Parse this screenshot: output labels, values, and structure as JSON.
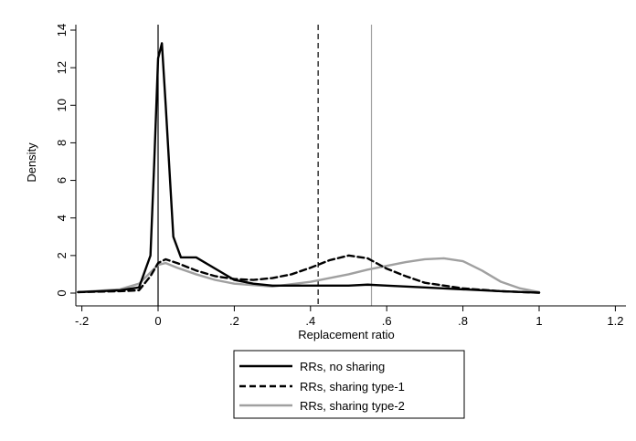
{
  "chart_data": {
    "type": "line",
    "xlabel": "Replacement ratio",
    "ylabel": "Density",
    "xlim": [
      -0.2,
      1.2
    ],
    "ylim": [
      0,
      14
    ],
    "xticks": [
      -0.2,
      0,
      0.2,
      0.4,
      0.6,
      0.8,
      1,
      1.2
    ],
    "xtick_labels": [
      "-.2",
      "0",
      ".2",
      ".4",
      ".6",
      ".8",
      "1",
      "1.2"
    ],
    "yticks": [
      0,
      2,
      4,
      6,
      8,
      10,
      12,
      14
    ],
    "ytick_labels": [
      "0",
      "2",
      "4",
      "6",
      "8",
      "10",
      "12",
      "14"
    ],
    "grid": false,
    "legend_position": "bottom-center",
    "reference_lines": [
      {
        "x": 0,
        "style": "solid",
        "color": "#000000"
      },
      {
        "x": 0.42,
        "style": "dashed",
        "color": "#000000"
      },
      {
        "x": 0.56,
        "style": "solid",
        "color": "#a0a0a0"
      }
    ],
    "series": [
      {
        "name": "RRs, no sharing",
        "style": "solid",
        "color": "#000000",
        "x": [
          -0.21,
          -0.15,
          -0.1,
          -0.05,
          -0.02,
          -0.01,
          0,
          0.01,
          0.02,
          0.04,
          0.06,
          0.1,
          0.15,
          0.2,
          0.25,
          0.3,
          0.4,
          0.5,
          0.55,
          0.6,
          0.7,
          0.8,
          0.9,
          1.0
        ],
        "values": [
          0.05,
          0.1,
          0.15,
          0.3,
          2.0,
          7.0,
          12.5,
          13.3,
          10.0,
          3.0,
          1.9,
          1.9,
          1.3,
          0.7,
          0.5,
          0.4,
          0.4,
          0.4,
          0.45,
          0.4,
          0.3,
          0.2,
          0.1,
          0.02
        ]
      },
      {
        "name": "RRs, sharing type-1",
        "style": "dashed",
        "color": "#000000",
        "x": [
          -0.21,
          -0.1,
          -0.05,
          -0.02,
          0,
          0.02,
          0.05,
          0.1,
          0.15,
          0.2,
          0.25,
          0.3,
          0.35,
          0.4,
          0.45,
          0.5,
          0.55,
          0.6,
          0.65,
          0.7,
          0.8,
          0.9,
          1.0
        ],
        "values": [
          0.05,
          0.1,
          0.15,
          0.9,
          1.6,
          1.8,
          1.6,
          1.2,
          0.9,
          0.75,
          0.7,
          0.8,
          1.0,
          1.35,
          1.75,
          2.0,
          1.85,
          1.3,
          0.9,
          0.55,
          0.25,
          0.1,
          0.02
        ]
      },
      {
        "name": "RRs, sharing type-2",
        "style": "solid",
        "color": "#a0a0a0",
        "x": [
          -0.21,
          -0.1,
          -0.05,
          -0.02,
          0,
          0.02,
          0.05,
          0.1,
          0.15,
          0.2,
          0.3,
          0.4,
          0.5,
          0.55,
          0.6,
          0.65,
          0.7,
          0.75,
          0.8,
          0.85,
          0.9,
          0.95,
          1.0
        ],
        "values": [
          0.05,
          0.2,
          0.5,
          1.1,
          1.5,
          1.6,
          1.35,
          1.0,
          0.7,
          0.5,
          0.35,
          0.6,
          1.0,
          1.25,
          1.45,
          1.65,
          1.8,
          1.85,
          1.7,
          1.2,
          0.6,
          0.25,
          0.05
        ]
      }
    ]
  }
}
